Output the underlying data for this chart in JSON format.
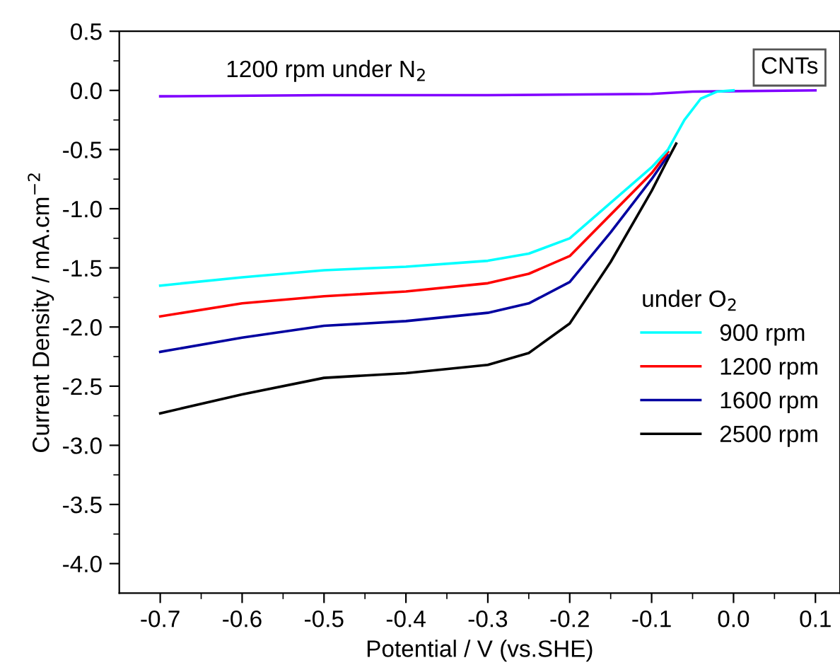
{
  "chart_data": {
    "type": "line",
    "xlabel": "Potential / V (vs.SHE)",
    "ylabel": "Current Density / mA.cm$^{−2}$",
    "legend_title": "under O$_{2}$",
    "legend": "right",
    "grid": false,
    "annotations": [
      "CNTs"
    ],
    "xlim": [
      -0.75,
      0.13
    ],
    "ylim": [
      -4.25,
      0.5
    ],
    "xticks": [
      -0.7,
      -0.6,
      -0.5,
      -0.4,
      -0.3,
      -0.2,
      -0.1,
      {
        "value": 0,
        "label": "0.0"
      },
      0.1
    ],
    "yticks": [
      {
        "value": -4,
        "label": "-4.0"
      },
      -3.5,
      {
        "value": -3,
        "label": "-3.0"
      },
      -2.5,
      {
        "value": -2,
        "label": "-2.0"
      },
      -1.5,
      {
        "value": -1,
        "label": "-1.0"
      },
      -0.5,
      {
        "value": 0,
        "label": "0.0"
      },
      0.5
    ],
    "series": [
      {
        "name": "1200 rpm under N$_{2}$",
        "color": "#8000ff",
        "x": [
          -0.7,
          -0.5,
          -0.3,
          -0.1,
          -0.05,
          0.1
        ],
        "values": [
          -0.05,
          -0.04,
          -0.04,
          -0.03,
          -0.01,
          0.0
        ]
      },
      {
        "name": "900 rpm",
        "color": "#00ffff",
        "x": [
          -0.7,
          -0.6,
          -0.5,
          -0.4,
          -0.3,
          -0.25,
          -0.2,
          -0.15,
          -0.1,
          -0.08,
          -0.06,
          -0.04,
          -0.02,
          0.0
        ],
        "values": [
          -1.65,
          -1.58,
          -1.52,
          -1.49,
          -1.44,
          -1.38,
          -1.25,
          -0.95,
          -0.65,
          -0.5,
          -0.25,
          -0.07,
          -0.01,
          0.0
        ]
      },
      {
        "name": "1200 rpm",
        "color": "#ff0000",
        "x": [
          -0.7,
          -0.6,
          -0.5,
          -0.4,
          -0.3,
          -0.25,
          -0.2,
          -0.15,
          -0.1,
          -0.08
        ],
        "values": [
          -1.91,
          -1.8,
          -1.74,
          -1.7,
          -1.63,
          -1.55,
          -1.4,
          -1.05,
          -0.7,
          -0.52
        ]
      },
      {
        "name": "1600 rpm",
        "color": "#0000a0",
        "x": [
          -0.7,
          -0.6,
          -0.5,
          -0.4,
          -0.3,
          -0.25,
          -0.2,
          -0.15,
          -0.1,
          -0.08
        ],
        "values": [
          -2.21,
          -2.09,
          -1.99,
          -1.95,
          -1.88,
          -1.8,
          -1.62,
          -1.2,
          -0.75,
          -0.55
        ]
      },
      {
        "name": "2500 rpm",
        "color": "#000000",
        "x": [
          -0.7,
          -0.6,
          -0.5,
          -0.4,
          -0.3,
          -0.25,
          -0.2,
          -0.15,
          -0.1,
          -0.08,
          -0.07
        ],
        "values": [
          -2.73,
          -2.57,
          -2.43,
          -2.39,
          -2.32,
          -2.22,
          -1.97,
          -1.45,
          -0.85,
          -0.58,
          -0.45
        ]
      }
    ]
  }
}
